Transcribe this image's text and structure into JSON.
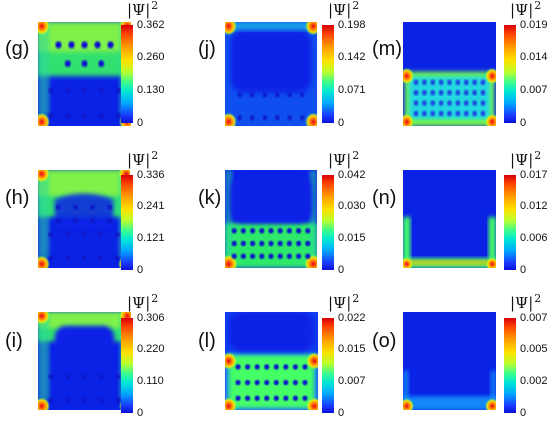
{
  "colorbar_title": "|Ψ|",
  "colorbar_exponent": "2",
  "panels": [
    {
      "label": "(g)",
      "ticks": [
        "0.362",
        "0.260",
        "0.130",
        "0"
      ]
    },
    {
      "label": "(j)",
      "ticks": [
        "0.198",
        "0.142",
        "0.071",
        "0"
      ]
    },
    {
      "label": "(m)",
      "ticks": [
        "0.019",
        "0.014",
        "0.007",
        "0"
      ]
    },
    {
      "label": "(h)",
      "ticks": [
        "0.336",
        "0.241",
        "0.121",
        "0"
      ]
    },
    {
      "label": "(k)",
      "ticks": [
        "0.042",
        "0.030",
        "0.015",
        "0"
      ]
    },
    {
      "label": "(n)",
      "ticks": [
        "0.017",
        "0.012",
        "0.006",
        "0"
      ]
    },
    {
      "label": "(i)",
      "ticks": [
        "0.306",
        "0.220",
        "0.110",
        "0"
      ]
    },
    {
      "label": "(l)",
      "ticks": [
        "0.022",
        "0.015",
        "0.007",
        "0"
      ]
    },
    {
      "label": "(o)",
      "ticks": [
        "0.007",
        "0.005",
        "0.002",
        "0"
      ]
    }
  ]
}
